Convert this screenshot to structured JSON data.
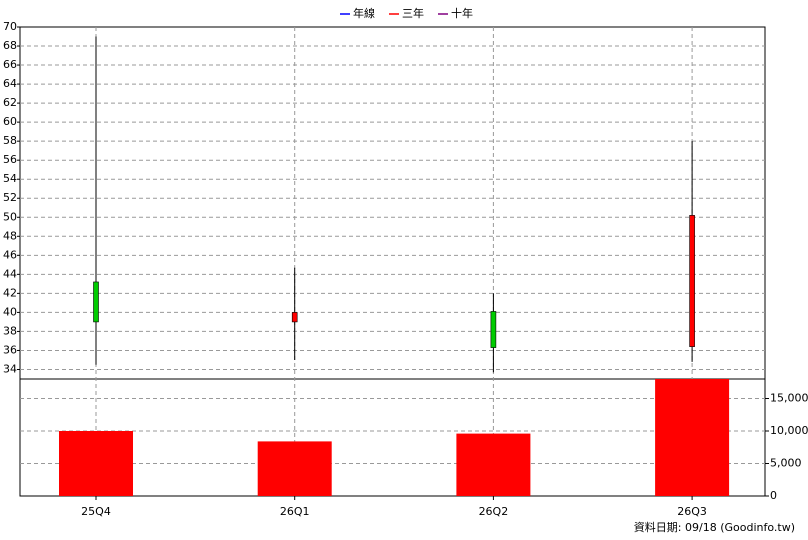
{
  "chart_data": {
    "type": "candlestick",
    "categories": [
      "25Q4",
      "26Q1",
      "26Q2",
      "26Q3"
    ],
    "open": [
      43.2,
      39,
      40.1,
      36.4
    ],
    "high": [
      69,
      44.7,
      42,
      58
    ],
    "low": [
      34.5,
      35,
      33.7,
      34.8
    ],
    "close": [
      39,
      40,
      36.3,
      50.2
    ],
    "up_color": "#ff0000",
    "down_color": "#00cc00",
    "ylim": [
      33,
      70
    ],
    "yticks": [
      34,
      36,
      38,
      40,
      42,
      44,
      46,
      48,
      50,
      52,
      54,
      56,
      58,
      60,
      62,
      64,
      66,
      68,
      70
    ],
    "volume": {
      "values": [
        10000,
        8400,
        9600,
        18000
      ],
      "color": "#ff0000",
      "y2lim": [
        0,
        18000
      ],
      "y2ticks": [
        0,
        {
          "value": 5000,
          "label": "5,000"
        },
        {
          "value": 10000,
          "label": "10,000"
        },
        {
          "value": 15000,
          "label": "15,000"
        }
      ]
    },
    "series": [
      {
        "name": "年線",
        "color": "#0000ff"
      },
      {
        "name": "三年",
        "color": "#ff0000"
      },
      {
        "name": "十年",
        "color": "#800080"
      }
    ],
    "grid": true,
    "footer": "資料日期: 09/18 (Goodinfo.tw)"
  }
}
